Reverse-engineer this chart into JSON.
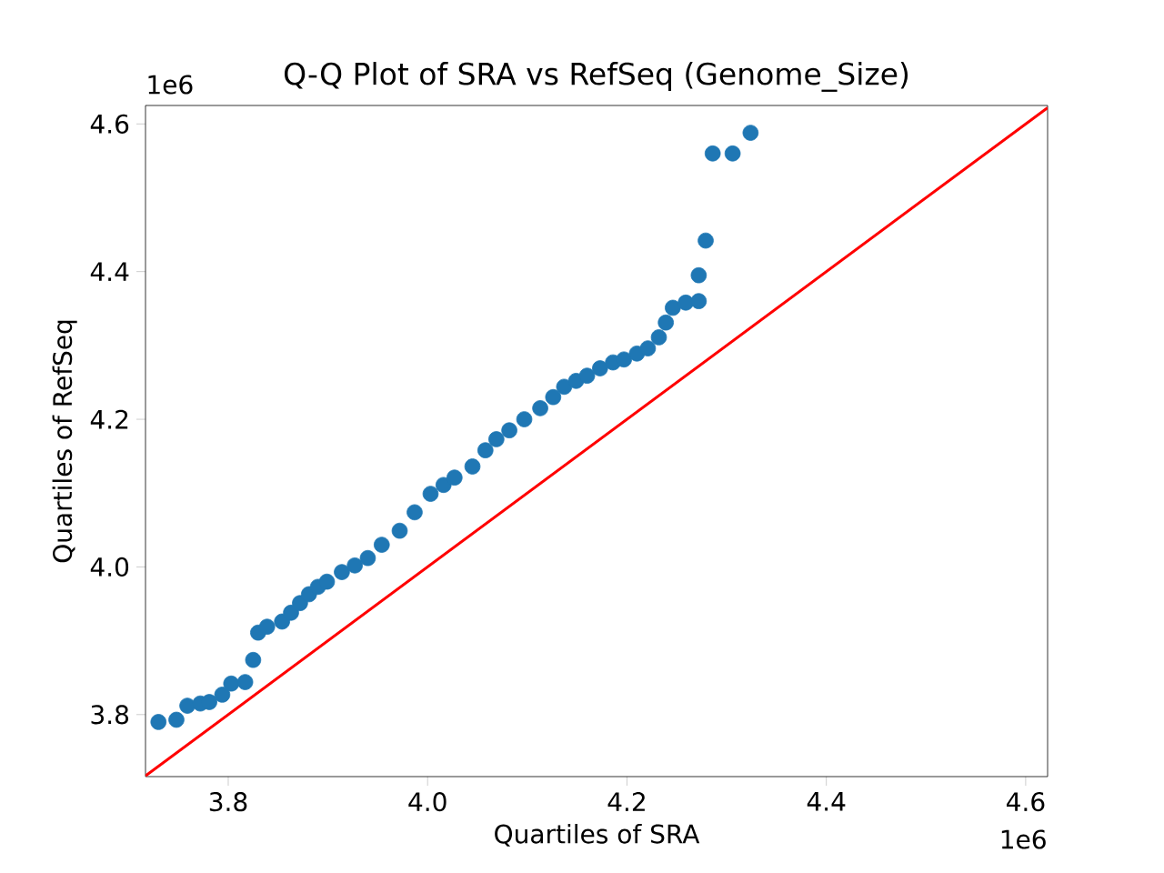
{
  "chart_data": {
    "type": "scatter",
    "title": "Q-Q Plot of SRA vs RefSeq (Genome_Size)",
    "xlabel": "Quartiles of SRA",
    "ylabel": "Quartiles of RefSeq",
    "annotations": [
      "1e6",
      "1e6"
    ],
    "grid": false,
    "xlim": [
      3.717,
      4.622
    ],
    "ylim": [
      3.716,
      4.625
    ],
    "xticks": [
      {
        "value": 3.8,
        "label": "3.8"
      },
      {
        "value": 4.0,
        "label": "4.0"
      },
      {
        "value": 4.2,
        "label": "4.2"
      },
      {
        "value": 4.4,
        "label": "4.4"
      },
      {
        "value": 4.6,
        "label": "4.6"
      }
    ],
    "yticks": [
      {
        "value": 3.8,
        "label": "3.8"
      },
      {
        "value": 4.0,
        "label": "4.0"
      },
      {
        "value": 4.2,
        "label": "4.2"
      },
      {
        "value": 4.4,
        "label": "4.4"
      },
      {
        "value": 4.6,
        "label": "4.6"
      }
    ],
    "series": [
      {
        "color": "#1f77b4",
        "marker": "circle",
        "x": [
          3.73,
          3.748,
          3.759,
          3.772,
          3.781,
          3.794,
          3.803,
          3.817,
          3.825,
          3.83,
          3.839,
          3.854,
          3.863,
          3.872,
          3.881,
          3.89,
          3.899,
          3.914,
          3.927,
          3.94,
          3.954,
          3.972,
          3.987,
          4.003,
          4.016,
          4.027,
          4.045,
          4.058,
          4.069,
          4.082,
          4.097,
          4.113,
          4.126,
          4.137,
          4.149,
          4.16,
          4.173,
          4.186,
          4.197,
          4.21,
          4.221,
          4.232,
          4.239,
          4.246,
          4.259,
          4.272,
          4.272,
          4.279,
          4.286,
          4.306,
          4.324
        ],
        "values": [
          3.79,
          3.793,
          3.812,
          3.815,
          3.817,
          3.827,
          3.842,
          3.844,
          3.874,
          3.911,
          3.919,
          3.926,
          3.938,
          3.951,
          3.963,
          3.973,
          3.98,
          3.993,
          4.002,
          4.012,
          4.03,
          4.049,
          4.074,
          4.099,
          4.111,
          4.121,
          4.136,
          4.158,
          4.173,
          4.185,
          4.2,
          4.215,
          4.23,
          4.244,
          4.252,
          4.259,
          4.269,
          4.277,
          4.281,
          4.289,
          4.296,
          4.311,
          4.331,
          4.351,
          4.358,
          4.36,
          4.395,
          4.442,
          4.56,
          4.56,
          4.588
        ]
      },
      {
        "type": "line",
        "color": "#ff0000",
        "marker": "none",
        "line_style": "solid",
        "x": [
          3.717,
          4.622
        ],
        "values": [
          3.717,
          4.622
        ]
      }
    ]
  }
}
